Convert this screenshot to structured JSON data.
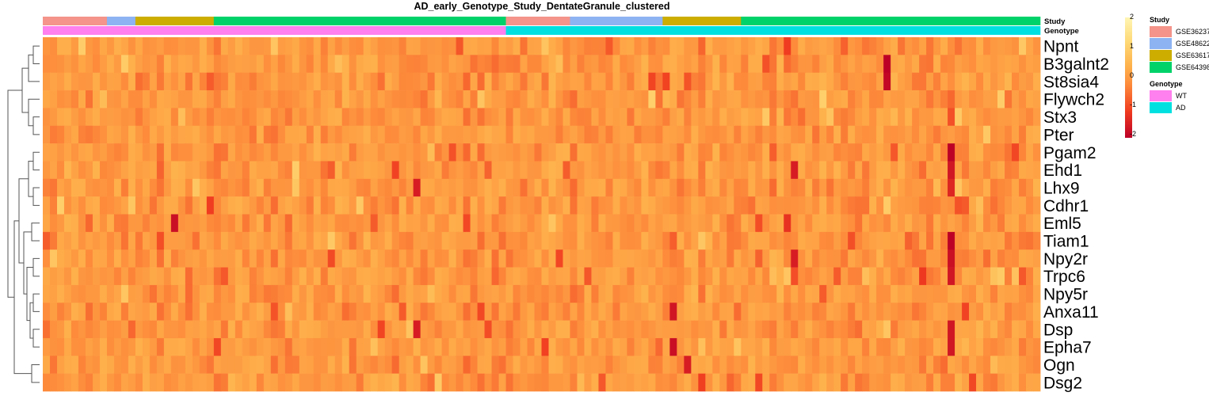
{
  "chart_data": {
    "type": "heatmap",
    "title": "AD_early_Genotype_Study_DentateGranule_clustered",
    "genes": [
      "Npnt",
      "B3galnt2",
      "St8sia4",
      "Flywch2",
      "Stx3",
      "Pter",
      "Pgam2",
      "Ehd1",
      "Lhx9",
      "Cdhr1",
      "Eml5",
      "Tiam1",
      "Npy2r",
      "Trpc6",
      "Npy5r",
      "Anxa11",
      "Dsp",
      "Epha7",
      "Ogn",
      "Dsg2"
    ],
    "n_samples": 140,
    "value_range": [
      -2,
      2
    ],
    "colorbar_ticks": [
      "2",
      "1",
      "0",
      "-1",
      "-2"
    ],
    "annotation_tracks": [
      {
        "name": "Study",
        "segments": [
          {
            "label": "GSE36237",
            "count": 9
          },
          {
            "label": "GSE48622",
            "count": 4
          },
          {
            "label": "GSE63617",
            "count": 11
          },
          {
            "label": "GSE64398",
            "count": 41
          },
          {
            "label": "GSE36237",
            "count": 9
          },
          {
            "label": "GSE48622",
            "count": 13
          },
          {
            "label": "GSE63617",
            "count": 11
          },
          {
            "label": "GSE64398",
            "count": 42
          }
        ]
      },
      {
        "name": "Genotype",
        "segments": [
          {
            "label": "WT",
            "count": 65
          },
          {
            "label": "AD",
            "count": 75
          }
        ]
      }
    ],
    "legend": [
      {
        "title": "Study",
        "items": [
          {
            "label": "GSE36237",
            "color": "#f4948a"
          },
          {
            "label": "GSE48622",
            "color": "#8db3f2"
          },
          {
            "label": "GSE63617",
            "color": "#ccad00"
          },
          {
            "label": "GSE64398",
            "color": "#00d26a"
          }
        ]
      },
      {
        "title": "Genotype",
        "items": [
          {
            "label": "WT",
            "color": "#ff80ee"
          },
          {
            "label": "AD",
            "color": "#00e0e0"
          }
        ]
      }
    ],
    "hotspots": [
      {
        "gene": "B3galnt2",
        "sample": 118,
        "value": -2.0
      },
      {
        "gene": "St8sia4",
        "sample": 118,
        "value": -1.9
      },
      {
        "gene": "Pgam2",
        "sample": 127,
        "value": -2.0
      },
      {
        "gene": "Ehd1",
        "sample": 105,
        "value": -1.6
      },
      {
        "gene": "Ehd1",
        "sample": 127,
        "value": -1.7
      },
      {
        "gene": "Lhx9",
        "sample": 52,
        "value": -1.6
      },
      {
        "gene": "Lhx9",
        "sample": 127,
        "value": -1.5
      },
      {
        "gene": "Eml5",
        "sample": 18,
        "value": -1.8
      },
      {
        "gene": "Tiam1",
        "sample": 127,
        "value": -2.2
      },
      {
        "gene": "Npy2r",
        "sample": 105,
        "value": -1.6
      },
      {
        "gene": "Npy2r",
        "sample": 127,
        "value": -1.8
      },
      {
        "gene": "Trpc6",
        "sample": 127,
        "value": -1.7
      },
      {
        "gene": "Anxa11",
        "sample": 88,
        "value": -1.7
      },
      {
        "gene": "Dsp",
        "sample": 52,
        "value": -1.6
      },
      {
        "gene": "Dsp",
        "sample": 127,
        "value": -1.7
      },
      {
        "gene": "Epha7",
        "sample": 88,
        "value": -1.8
      },
      {
        "gene": "Epha7",
        "sample": 127,
        "value": -1.7
      },
      {
        "gene": "Ogn",
        "sample": 90,
        "value": -1.6
      }
    ],
    "dendrogram": "rows clustered; 20 leaves"
  },
  "colors": {
    "scale": [
      "#bd0026",
      "#f03b20",
      "#fd8d3c",
      "#feb24c",
      "#fed976",
      "#fff5b4"
    ]
  }
}
